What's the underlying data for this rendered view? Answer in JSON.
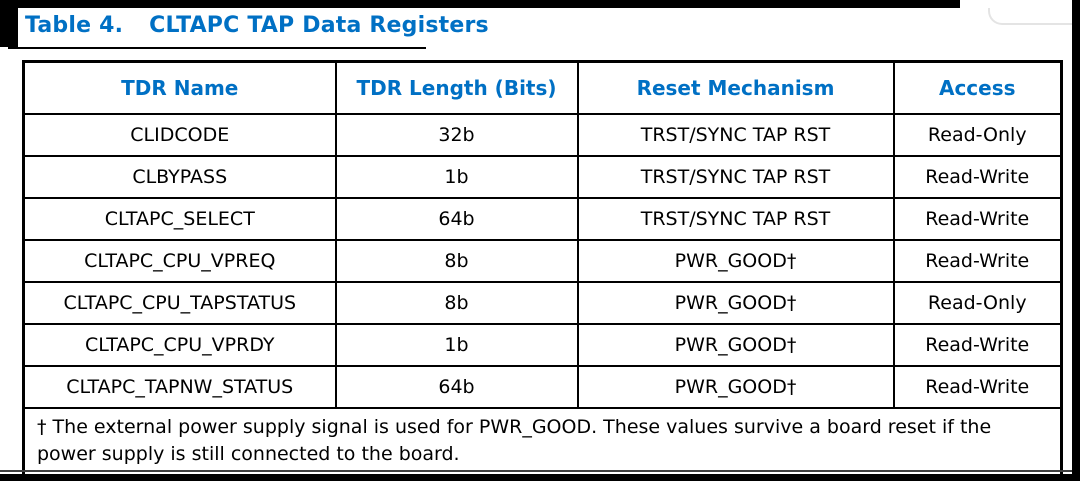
{
  "caption": {
    "number": "Table 4.",
    "title": "CLTAPC TAP Data Registers"
  },
  "colors": {
    "accent_blue": "#0070C4",
    "border_black": "#000000",
    "edge_bar": "#000000"
  },
  "table": {
    "columns": [
      "TDR Name",
      "TDR Length (Bits)",
      "Reset Mechanism",
      "Access"
    ],
    "rows": [
      [
        "CLIDCODE",
        "32b",
        "TRST/SYNC TAP RST",
        "Read-Only"
      ],
      [
        "CLBYPASS",
        "1b",
        "TRST/SYNC TAP RST",
        "Read-Write"
      ],
      [
        "CLTAPC_SELECT",
        "64b",
        "TRST/SYNC TAP RST",
        "Read-Write"
      ],
      [
        "CLTAPC_CPU_VPREQ",
        "8b",
        "PWR_GOOD†",
        "Read-Write"
      ],
      [
        "CLTAPC_CPU_TAPSTATUS",
        "8b",
        "PWR_GOOD†",
        "Read-Only"
      ],
      [
        "CLTAPC_CPU_VPRDY",
        "1b",
        "PWR_GOOD†",
        "Read-Write"
      ],
      [
        "CLTAPC_TAPNW_STATUS",
        "64b",
        "PWR_GOOD†",
        "Read-Write"
      ]
    ],
    "footnote": "† The external power supply signal is used for PWR_GOOD. These values survive a board reset if the power supply is still connected to the board."
  }
}
